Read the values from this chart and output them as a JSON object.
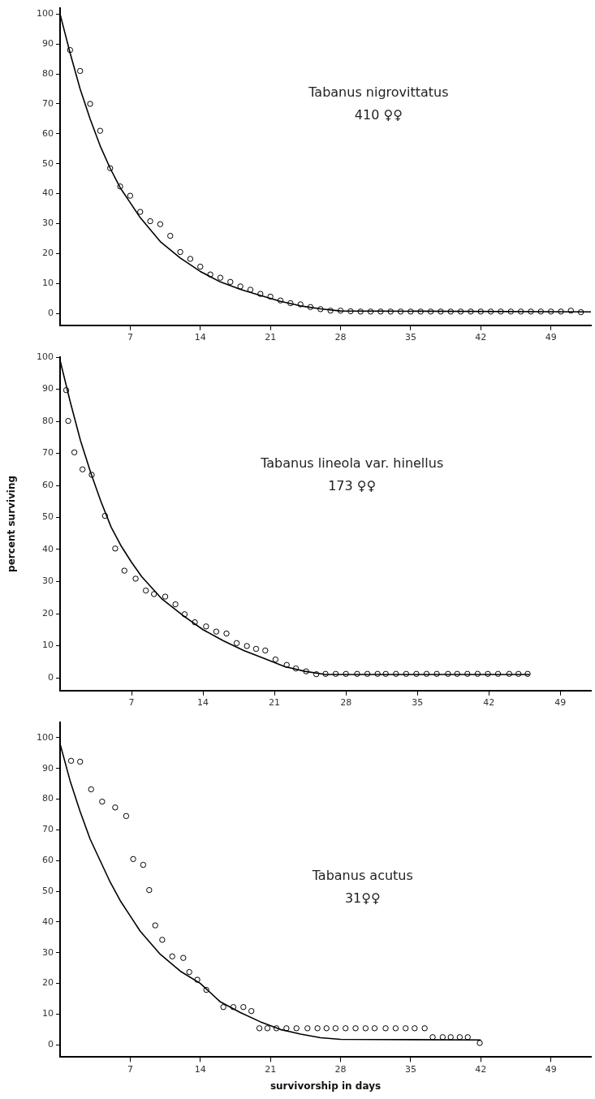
{
  "chart_data": [
    {
      "type": "scatter",
      "annotations": [
        "Tabanus nigrovittatus",
        "410 ♀♀"
      ],
      "xlim": [
        0,
        53
      ],
      "ylim": [
        -4,
        102
      ],
      "xticks": [
        7,
        14,
        21,
        28,
        35,
        42,
        49
      ],
      "yticks": [
        0,
        10,
        20,
        30,
        40,
        50,
        60,
        70,
        80,
        90,
        100
      ],
      "series": [
        {
          "type": "scatter",
          "marker": "circle",
          "color": "#000000",
          "x": [
            1,
            2,
            3,
            4,
            5,
            6,
            7,
            8,
            9,
            10,
            11,
            12,
            13,
            14,
            15,
            16,
            17,
            18,
            19,
            20,
            21,
            22,
            23,
            24,
            25,
            26,
            27,
            28,
            29,
            30,
            31,
            32,
            33,
            34,
            35,
            36,
            37,
            38,
            39,
            40,
            41,
            42,
            43,
            44,
            45,
            46,
            47,
            48,
            49,
            50,
            51,
            52
          ],
          "values": [
            88,
            81,
            70,
            61,
            48.5,
            42.4,
            39.3,
            33.9,
            30.8,
            29.8,
            25.9,
            20.5,
            18.2,
            15.6,
            13,
            11.9,
            10.5,
            9,
            7.9,
            6.5,
            5.6,
            4.3,
            3.4,
            3,
            2.1,
            1.4,
            0.9,
            0.9,
            0.7,
            0.6,
            0.6,
            0.6,
            0.6,
            0.6,
            0.6,
            0.6,
            0.6,
            0.6,
            0.6,
            0.6,
            0.6,
            0.6,
            0.6,
            0.6,
            0.6,
            0.6,
            0.6,
            0.6,
            0.6,
            0.6,
            0.9,
            0.4
          ]
        },
        {
          "type": "line",
          "marker": "none",
          "color": "#000000",
          "x": [
            0,
            1,
            2,
            3,
            4,
            5,
            6,
            7,
            8,
            10,
            12,
            14,
            16,
            18,
            20,
            22,
            24,
            26,
            28,
            53
          ],
          "values": [
            100,
            87,
            75,
            65,
            56,
            48.5,
            42,
            37,
            32,
            24,
            18.5,
            14,
            10.5,
            8,
            6,
            4,
            2.5,
            1.5,
            0.8,
            0.5
          ]
        }
      ]
    },
    {
      "type": "scatter",
      "annotations": [
        "Tabanus lineola var. hinellus",
        "173 ♀♀"
      ],
      "ylabel": "percent surviving",
      "xlim": [
        0,
        52
      ],
      "ylim": [
        -4,
        100
      ],
      "xticks": [
        7,
        14,
        21,
        28,
        35,
        42,
        49
      ],
      "yticks": [
        0,
        10,
        20,
        30,
        40,
        50,
        60,
        70,
        80,
        90,
        100
      ],
      "series": [
        {
          "type": "scatter",
          "marker": "circle",
          "color": "#000000",
          "x": [
            0.6,
            0.8,
            1.4,
            2.2,
            3.1,
            4.4,
            5.4,
            6.3,
            7.4,
            8.4,
            9.2,
            10.3,
            11.3,
            12.2,
            13.2,
            14.3,
            15.3,
            16.3,
            17.3,
            18.3,
            19.2,
            20.1,
            21.1,
            22.2,
            23.1,
            24.1,
            25.1,
            26,
            27,
            28,
            29.1,
            30.1,
            31.1,
            31.9,
            32.9,
            33.9,
            34.9,
            35.9,
            36.9,
            38,
            38.9,
            39.9,
            40.9,
            41.9,
            42.9,
            44,
            44.9,
            45.8
          ],
          "values": [
            89.7,
            80.1,
            70.3,
            65,
            63.3,
            50.5,
            40.3,
            33.4,
            30.9,
            27.2,
            26.1,
            25.3,
            22.9,
            19.8,
            17.3,
            16,
            14.4,
            13.8,
            10.8,
            9.9,
            9,
            8.5,
            5.7,
            4,
            2.9,
            2,
            1.1,
            1.2,
            1.2,
            1.2,
            1.2,
            1.2,
            1.2,
            1.2,
            1.2,
            1.2,
            1.2,
            1.2,
            1.2,
            1.2,
            1.2,
            1.2,
            1.2,
            1.2,
            1.2,
            1.2,
            1.2,
            1.2
          ]
        },
        {
          "type": "line",
          "marker": "none",
          "color": "#000000",
          "x": [
            0,
            1,
            2,
            3,
            4,
            5,
            6,
            7,
            8,
            10,
            12,
            14,
            16,
            18,
            20,
            22,
            24,
            26,
            46
          ],
          "values": [
            99,
            86,
            74,
            64,
            55,
            47,
            41,
            36,
            31.5,
            24.5,
            19.5,
            15,
            11.5,
            8.5,
            6,
            3.5,
            2,
            1,
            1
          ]
        }
      ]
    },
    {
      "type": "scatter",
      "annotations": [
        "Tabanus acutus",
        "31♀♀"
      ],
      "xlabel": "survivorship in days",
      "xlim": [
        0,
        53
      ],
      "ylim": [
        -4,
        105
      ],
      "xticks": [
        7,
        14,
        21,
        28,
        35,
        42,
        49
      ],
      "yticks": [
        0,
        10,
        20,
        30,
        40,
        50,
        60,
        70,
        80,
        90,
        100
      ],
      "series": [
        {
          "type": "scatter",
          "marker": "circle",
          "color": "#000000",
          "x": [
            1.1,
            2,
            3.1,
            4.2,
            5.5,
            6.6,
            7.3,
            8.3,
            8.9,
            9.5,
            10.2,
            11.2,
            12.3,
            12.9,
            13.7,
            14.6,
            16.3,
            17.3,
            18.3,
            19.1,
            19.9,
            20.7,
            21.6,
            22.6,
            23.6,
            24.7,
            25.7,
            26.6,
            27.5,
            28.5,
            29.5,
            30.5,
            31.4,
            32.5,
            33.5,
            34.5,
            35.4,
            36.4,
            37.2,
            38.2,
            39,
            39.9,
            40.7,
            41.9
          ],
          "values": [
            92.5,
            92.2,
            83.2,
            79.2,
            77.3,
            74.5,
            60.5,
            58.6,
            50.4,
            38.9,
            34.2,
            28.8,
            28.3,
            23.7,
            21.2,
            17.9,
            12.3,
            12.3,
            12.3,
            11,
            5.4,
            5.4,
            5.4,
            5.4,
            5.4,
            5.4,
            5.4,
            5.4,
            5.4,
            5.4,
            5.4,
            5.4,
            5.4,
            5.4,
            5.4,
            5.4,
            5.4,
            5.4,
            2.5,
            2.5,
            2.5,
            2.5,
            2.5,
            0.6
          ]
        },
        {
          "type": "line",
          "marker": "none",
          "color": "#000000",
          "x": [
            0,
            1,
            2,
            3,
            4,
            5,
            6,
            7,
            8,
            10,
            12,
            14,
            16,
            18,
            20,
            22,
            24,
            26,
            28,
            42
          ],
          "values": [
            98,
            86,
            76,
            67,
            60,
            53,
            47,
            42,
            37,
            29.5,
            24,
            20,
            14,
            10.5,
            7.5,
            5,
            3.5,
            2.3,
            1.8,
            1.6
          ]
        }
      ]
    }
  ]
}
